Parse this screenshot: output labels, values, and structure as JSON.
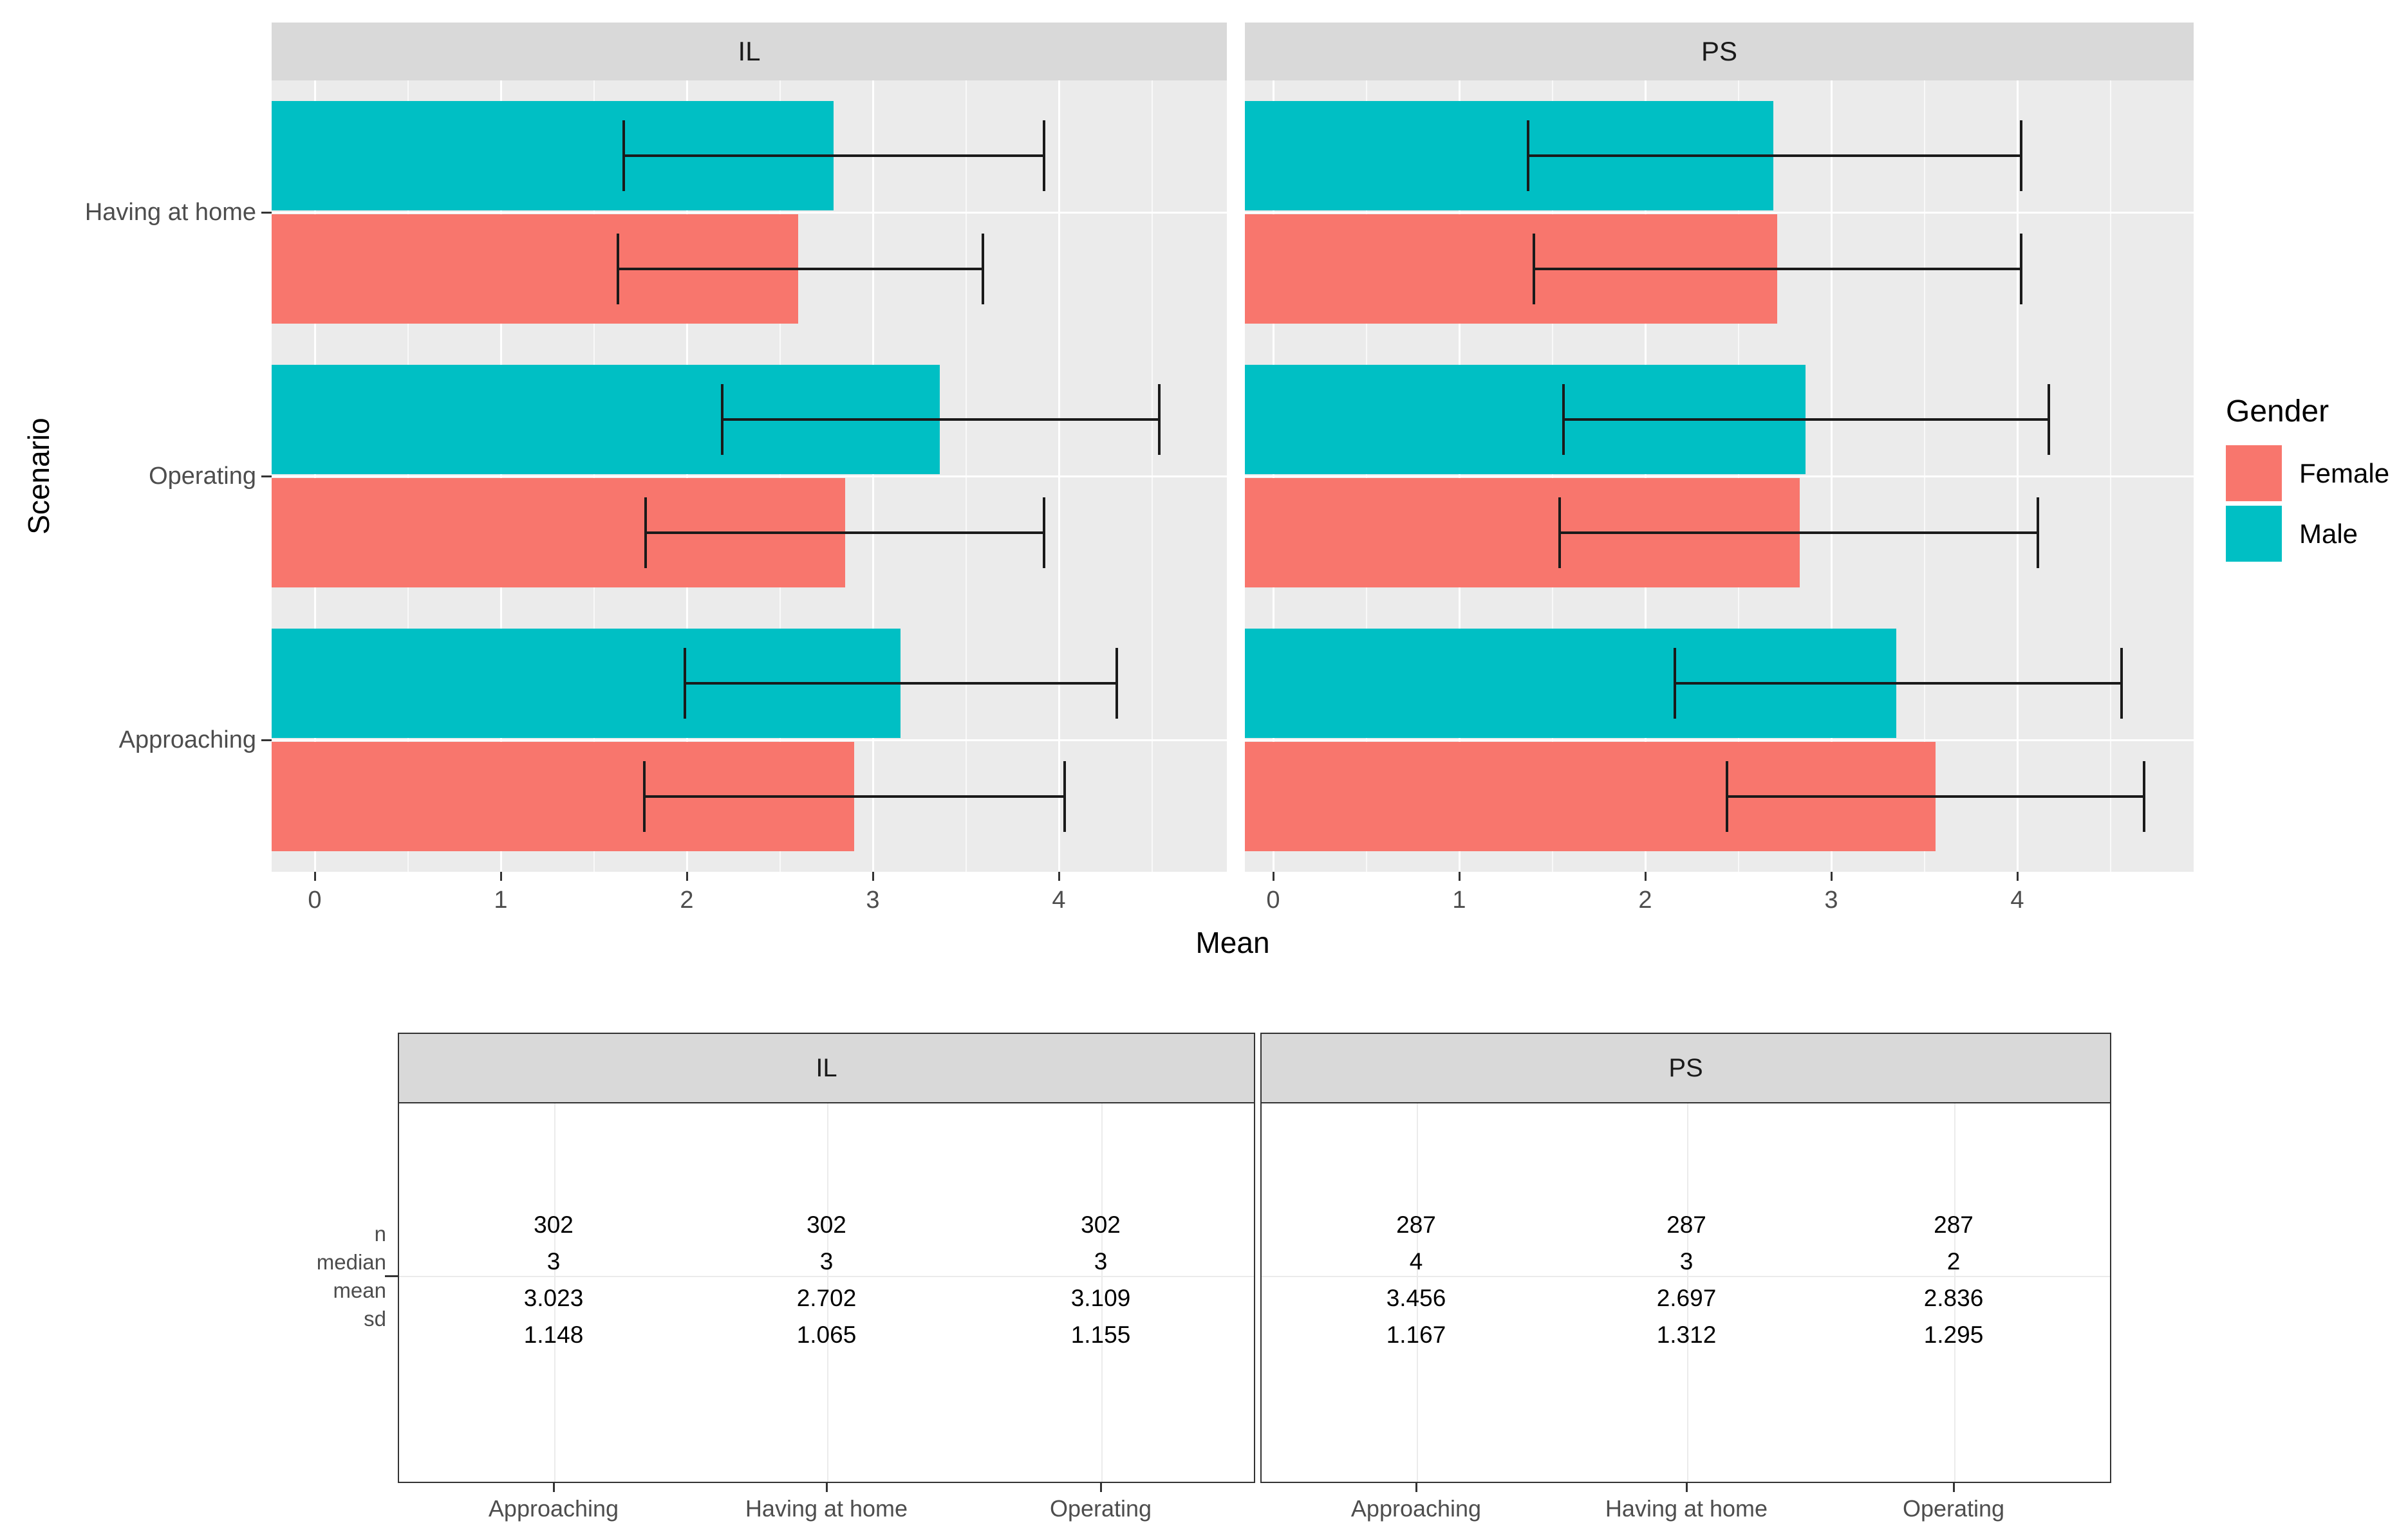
{
  "style": {
    "female_color": "#F8766D",
    "male_color": "#00BFC4",
    "panel_bg": "#EBEBEB",
    "strip_bg": "#D9D9D9",
    "grid_color": "#FFFFFF",
    "axis_text_color": "#4D4D4D",
    "error_bar_color": "#1A1A1A"
  },
  "chart_data": [
    {
      "type": "bar",
      "orientation": "horizontal",
      "facets": [
        "IL",
        "PS"
      ],
      "xlabel": "Mean",
      "ylabel": "Scenario",
      "xlim": [
        0,
        4.92
      ],
      "x_ticks": [
        "0",
        "1",
        "2",
        "3",
        "4"
      ],
      "categories_top_to_bottom": [
        "Having at home",
        "Operating",
        "Approaching"
      ],
      "legend": {
        "title": "Gender",
        "position": "right",
        "entries": [
          "Female",
          "Male"
        ]
      },
      "error_bars": "mean ± sd",
      "grid": "white major and minor gridlines on gray panel",
      "series": [
        {
          "facet": "IL",
          "gender": "Male",
          "color": "#00BFC4",
          "means": [
            2.79,
            3.36,
            3.15
          ],
          "lower": [
            1.66,
            2.19,
            1.99
          ],
          "upper": [
            3.92,
            4.54,
            4.31
          ]
        },
        {
          "facet": "IL",
          "gender": "Female",
          "color": "#F8766D",
          "means": [
            2.6,
            2.85,
            2.9
          ],
          "lower": [
            1.63,
            1.78,
            1.77
          ],
          "upper": [
            3.59,
            3.92,
            4.03
          ]
        },
        {
          "facet": "PS",
          "gender": "Male",
          "color": "#00BFC4",
          "means": [
            2.69,
            2.86,
            3.35
          ],
          "lower": [
            1.37,
            1.56,
            2.16
          ],
          "upper": [
            4.02,
            4.17,
            4.56
          ]
        },
        {
          "facet": "PS",
          "gender": "Female",
          "color": "#F8766D",
          "means": [
            2.71,
            2.83,
            3.56
          ],
          "lower": [
            1.4,
            1.54,
            2.44
          ],
          "upper": [
            4.02,
            4.11,
            4.68
          ]
        }
      ]
    },
    {
      "type": "table",
      "facets": [
        "IL",
        "PS"
      ],
      "row_labels": [
        "n",
        "median",
        "mean",
        "sd"
      ],
      "columns": [
        "Approaching",
        "Having at home",
        "Operating"
      ],
      "values": {
        "IL": {
          "Approaching": [
            "302",
            "3",
            "3.023",
            "1.148"
          ],
          "Having at home": [
            "302",
            "3",
            "2.702",
            "1.065"
          ],
          "Operating": [
            "302",
            "3",
            "3.109",
            "1.155"
          ]
        },
        "PS": {
          "Approaching": [
            "287",
            "4",
            "3.456",
            "1.167"
          ],
          "Having at home": [
            "287",
            "3",
            "2.697",
            "1.312"
          ],
          "Operating": [
            "287",
            "2",
            "2.836",
            "1.295"
          ]
        }
      }
    }
  ]
}
